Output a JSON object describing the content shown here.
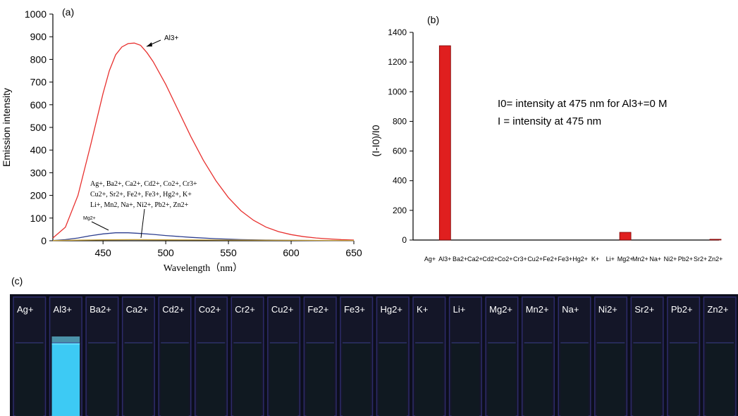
{
  "chart_data": [
    {
      "panel": "(a)",
      "type": "line",
      "xlabel": "Wavelength（nm）",
      "ylabel": "Emission intensity",
      "xlim": [
        410,
        650
      ],
      "ylim": [
        0,
        1000
      ],
      "xticks": [
        450,
        500,
        550,
        600,
        650
      ],
      "yticks": [
        0,
        100,
        200,
        300,
        400,
        500,
        600,
        700,
        800,
        900,
        1000
      ],
      "series": [
        {
          "name": "Al3+",
          "color": "#e8312f",
          "x": [
            410,
            420,
            430,
            440,
            450,
            455,
            460,
            465,
            470,
            475,
            480,
            485,
            490,
            500,
            510,
            520,
            530,
            540,
            550,
            560,
            570,
            580,
            590,
            600,
            610,
            620,
            630,
            640,
            650
          ],
          "y": [
            12,
            60,
            200,
            420,
            650,
            750,
            820,
            855,
            870,
            872,
            862,
            830,
            790,
            690,
            575,
            460,
            355,
            265,
            190,
            132,
            90,
            60,
            40,
            27,
            18,
            12,
            8,
            5,
            3
          ]
        },
        {
          "name": "Mg2+",
          "color": "#2e3f8f",
          "x": [
            410,
            420,
            430,
            440,
            450,
            460,
            470,
            480,
            490,
            500,
            520,
            540,
            560,
            580,
            600,
            620,
            650
          ],
          "y": [
            1,
            5,
            12,
            22,
            30,
            35,
            35,
            32,
            28,
            23,
            15,
            9,
            5,
            3,
            2,
            1,
            0
          ]
        },
        {
          "name": "others",
          "color": "#c8a23c",
          "x": [
            410,
            450,
            475,
            500,
            550,
            600,
            650
          ],
          "y": [
            1,
            4,
            5,
            4,
            3,
            2,
            1
          ]
        }
      ],
      "annotations": {
        "al_label": "Al3+",
        "mg_label": "Mg2+",
        "others_lines": [
          "Ag+, Ba2+, Ca2+, Cd2+, Co2+, Cr3+",
          "Cu2+, Sr2+, Fe2+, Fe3+, Hg2+, K+",
          "Li+, Mn2, Na+, Ni2+, Pb2+, Zn2+"
        ]
      }
    },
    {
      "panel": "(b)",
      "type": "bar",
      "ylabel": "(I-I0)/I0",
      "ylim": [
        0,
        1400
      ],
      "yticks": [
        0,
        200,
        400,
        600,
        800,
        1000,
        1200,
        1400
      ],
      "bar_color": "#e01f1f",
      "categories": [
        "Ag+",
        "Al3+",
        "Ba2+",
        "Ca2+",
        "Cd2+",
        "Co2+",
        "Cr3+",
        "Cu2+",
        "Fe2+",
        "Fe3+",
        "Hg2+",
        "K+",
        "Li+",
        "Mg2+",
        "Mn2+",
        "Na+",
        "Ni2+",
        "Pb2+",
        "Sr2+",
        "Zn2+"
      ],
      "values": [
        0,
        1310,
        0,
        0,
        0,
        0,
        0,
        0,
        0,
        0,
        0,
        0,
        0,
        52,
        0,
        0,
        0,
        0,
        0,
        5
      ],
      "annotations": {
        "line1": "I0= intensity at 475 nm for Al3+=0 M",
        "line2": "I = intensity at 475 nm"
      }
    }
  ],
  "photo": {
    "panel": "(c)",
    "labels": [
      "Ag+",
      "Al3+",
      "Ba2+",
      "Ca2+",
      "Cd2+",
      "Co2+",
      "Cr2+",
      "Cu2+",
      "Fe2+",
      "Fe3+",
      "Hg2+",
      "K+",
      "Li+",
      "Mg2+",
      "Mn2+",
      "Na+",
      "Ni2+",
      "Sr2+",
      "Pb2+",
      "Zn2+"
    ],
    "highlight_index": 1,
    "highlight_color": "#3fd4ff"
  }
}
